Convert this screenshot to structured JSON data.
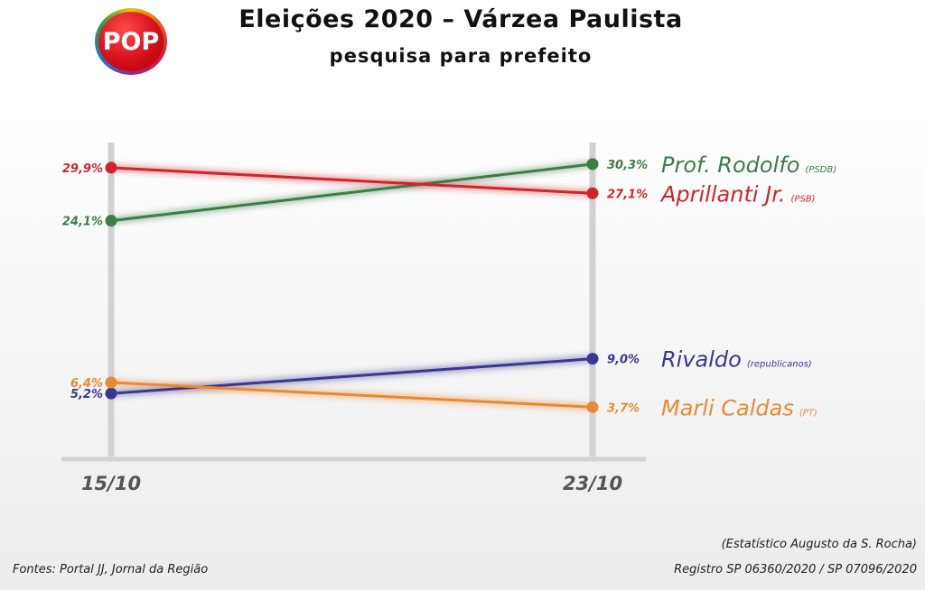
{
  "header": {
    "logo_text": "POP",
    "title": "Eleições 2020  – Várzea Paulista",
    "subtitle": "pesquisa para prefeito"
  },
  "footer": {
    "sources": "Fontes: Portal JJ, Jornal da Região",
    "statistician": "(Estatístico Augusto da S. Rocha)",
    "registry": "Registro SP 06360/2020 / SP 07096/2020"
  },
  "colors": {
    "green": "#3c7d48",
    "red": "#d0242c",
    "blue": "#3a3791",
    "orange": "#e88a35",
    "axis": "#d2d2d2"
  },
  "chart_data": {
    "type": "line",
    "categories": [
      "15/10",
      "23/10"
    ],
    "series": [
      {
        "name": "Prof. Rodolfo",
        "party": "(PSDB)",
        "color": "#3c7d48",
        "values": [
          24.1,
          30.3
        ],
        "labels": [
          "24,1%",
          "30,3%"
        ]
      },
      {
        "name": "Aprillanti Jr.",
        "party": "(PSB)",
        "color": "#d0242c",
        "values": [
          29.9,
          27.1
        ],
        "labels": [
          "29,9%",
          "27,1%"
        ]
      },
      {
        "name": "Rivaldo",
        "party": "(republicanos)",
        "color": "#3a3791",
        "values": [
          5.2,
          9.0
        ],
        "labels": [
          "5,2%",
          "9,0%"
        ]
      },
      {
        "name": "Marli Caldas",
        "party": "(PT)",
        "color": "#e88a35",
        "values": [
          6.4,
          3.7
        ],
        "labels": [
          "6,4%",
          "3,7%"
        ]
      }
    ],
    "title": "Eleições 2020  – Várzea Paulista",
    "subtitle": "pesquisa para prefeito",
    "grid": false,
    "legend": "right"
  }
}
